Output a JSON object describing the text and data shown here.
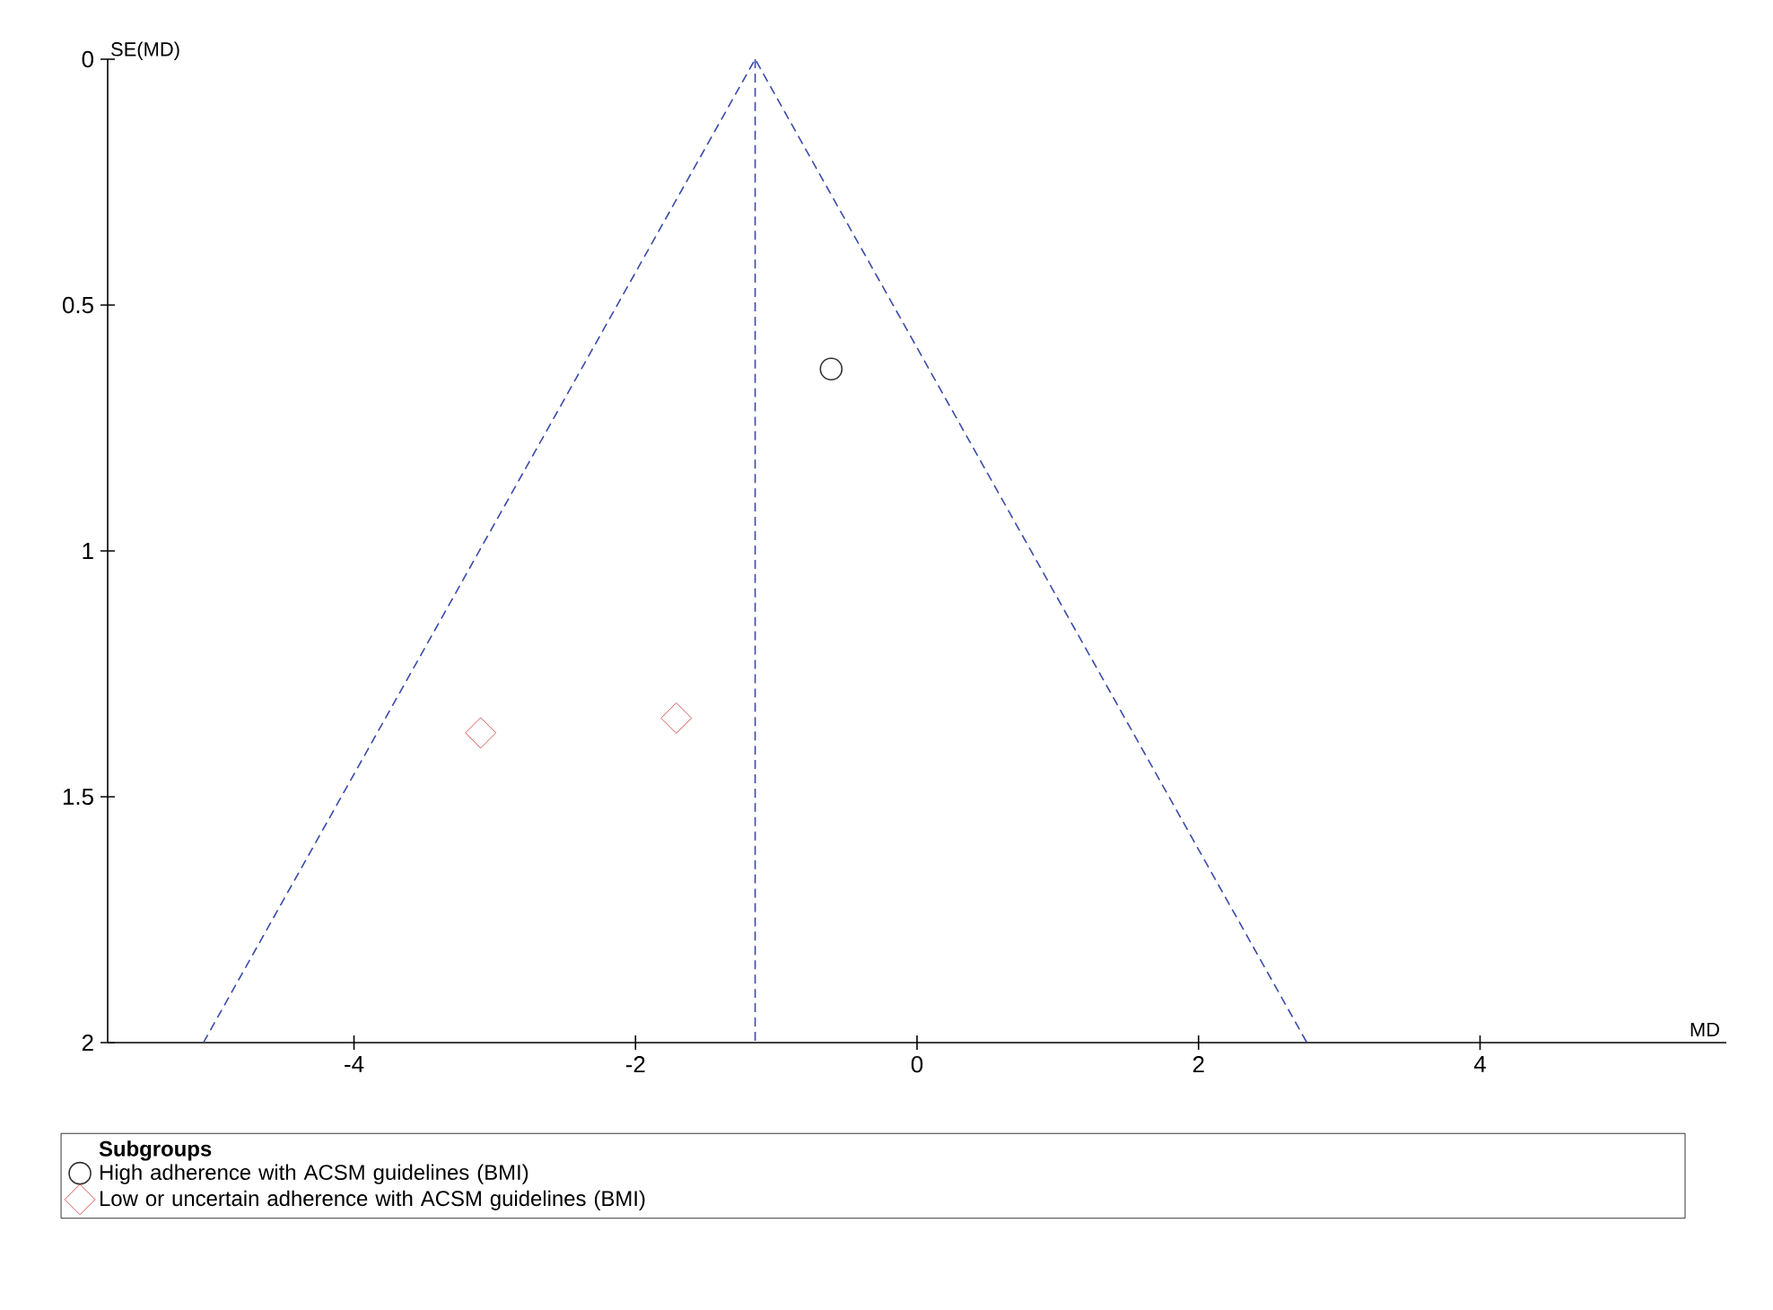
{
  "chart_data": {
    "type": "scatter",
    "xlabel": "MD",
    "ylabel": "SE(MD)",
    "legend_title": "Subgroups",
    "legend": "bottom",
    "xlim": [
      -5.75,
      5.75
    ],
    "xticks": [
      -4,
      -2,
      0,
      2,
      4
    ],
    "ylim": [
      2,
      0
    ],
    "yticks": [
      0,
      0.5,
      1,
      1.5,
      2
    ],
    "series": [
      {
        "type": "line",
        "line_style": "dashed",
        "marker": "none",
        "color": "#3a4aa8",
        "x": [
          -5.07,
          -1.15,
          2.77
        ],
        "values": [
          2,
          0,
          2
        ]
      },
      {
        "type": "line",
        "line_style": "dashed",
        "marker": "none",
        "color": "#3a4aa8",
        "x": [
          -1.15,
          -1.15
        ],
        "values": [
          0,
          2
        ]
      },
      {
        "name": "High adherence with ACSM guidelines (BMI)",
        "marker": "circle",
        "color": "#333333",
        "x": [
          -0.61
        ],
        "values": [
          0.63
        ]
      },
      {
        "name": "Low or uncertain adherence with ACSM guidelines (BMI)",
        "marker": "diamond",
        "color": "#cc3333",
        "x": [
          -3.1,
          -1.71
        ],
        "values": [
          1.37,
          1.34
        ]
      }
    ]
  }
}
